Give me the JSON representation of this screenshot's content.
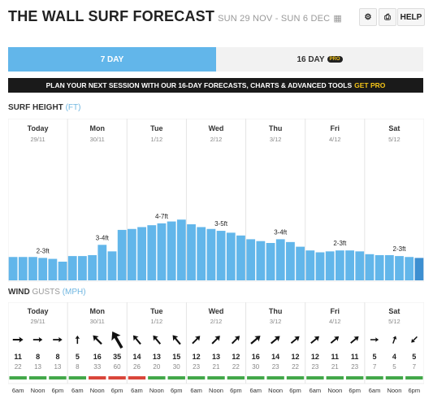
{
  "header": {
    "title": "THE WALL SURF FORECAST",
    "dates": "SUN 29 NOV - SUN 6 DEC",
    "help": "HELP"
  },
  "tabs": [
    {
      "label": "7 DAY",
      "active": true
    },
    {
      "label": "16 DAY",
      "badge": "PRO",
      "active": false
    }
  ],
  "banner": {
    "text": "PLAN YOUR NEXT SESSION WITH OUR 16-DAY FORECASTS, CHARTS & ADVANCED TOOLS",
    "link": "GET PRO"
  },
  "surf": {
    "title": "SURF HEIGHT",
    "unit": "(FT)",
    "color": "#62b6ea",
    "days": [
      {
        "name": "Today",
        "date": "29/11"
      },
      {
        "name": "Mon",
        "date": "30/11"
      },
      {
        "name": "Tue",
        "date": "1/12"
      },
      {
        "name": "Wed",
        "date": "2/12"
      },
      {
        "name": "Thu",
        "date": "3/12"
      },
      {
        "name": "Fri",
        "date": "4/12"
      },
      {
        "name": "Sat",
        "date": "5/12"
      }
    ],
    "values": [
      2.5,
      2.5,
      2.5,
      2.4,
      2.3,
      2.0,
      2.6,
      2.6,
      2.7,
      3.8,
      3.1,
      5.4,
      5.5,
      5.7,
      5.9,
      6.1,
      6.3,
      6.5,
      6.0,
      5.7,
      5.5,
      5.3,
      5.1,
      4.8,
      4.4,
      4.2,
      4.0,
      4.4,
      4.1,
      3.6,
      3.2,
      3.0,
      3.1,
      3.2,
      3.2,
      3.1,
      2.8,
      2.7,
      2.7,
      2.6,
      2.5,
      2.4
    ],
    "value_labels": [
      null,
      null,
      null,
      "2-3ft",
      null,
      null,
      null,
      null,
      null,
      "3-4ft",
      null,
      null,
      null,
      null,
      null,
      "4-7ft",
      null,
      null,
      null,
      null,
      null,
      "3-5ft",
      null,
      null,
      null,
      null,
      null,
      "3-4ft",
      null,
      null,
      null,
      null,
      null,
      "2-3ft",
      null,
      null,
      null,
      null,
      null,
      "2-3ft",
      null,
      null
    ]
  },
  "wind": {
    "title": "WIND",
    "subtitle": "GUSTS",
    "unit": "(MPH)",
    "days": [
      {
        "name": "Today",
        "date": "29/11",
        "slots": [
          {
            "time": "6am",
            "dir": 90,
            "speed": 11,
            "gust": 22,
            "color": "#43a84a"
          },
          {
            "time": "Noon",
            "dir": 90,
            "speed": 8,
            "gust": 13,
            "color": "#43a84a"
          },
          {
            "time": "6pm",
            "dir": 90,
            "speed": 8,
            "gust": 13,
            "color": "#43a84a"
          }
        ]
      },
      {
        "name": "Mon",
        "date": "30/11",
        "slots": [
          {
            "time": "6am",
            "dir": 0,
            "speed": 5,
            "gust": 8,
            "color": "#43a84a"
          },
          {
            "time": "Noon",
            "dir": 315,
            "speed": 16,
            "gust": 33,
            "color": "#d9463a"
          },
          {
            "time": "6pm",
            "dir": 330,
            "speed": 35,
            "gust": 60,
            "color": "#d9463a"
          }
        ]
      },
      {
        "name": "Tue",
        "date": "1/12",
        "slots": [
          {
            "time": "6am",
            "dir": 320,
            "speed": 14,
            "gust": 26,
            "color": "#d9463a"
          },
          {
            "time": "Noon",
            "dir": 320,
            "speed": 13,
            "gust": 20,
            "color": "#43a84a"
          },
          {
            "time": "6pm",
            "dir": 320,
            "speed": 15,
            "gust": 30,
            "color": "#43a84a"
          }
        ]
      },
      {
        "name": "Wed",
        "date": "2/12",
        "slots": [
          {
            "time": "6am",
            "dir": 45,
            "speed": 12,
            "gust": 23,
            "color": "#43a84a"
          },
          {
            "time": "Noon",
            "dir": 45,
            "speed": 13,
            "gust": 21,
            "color": "#43a84a"
          },
          {
            "time": "6pm",
            "dir": 45,
            "speed": 12,
            "gust": 22,
            "color": "#43a84a"
          }
        ]
      },
      {
        "name": "Thu",
        "date": "3/12",
        "slots": [
          {
            "time": "6am",
            "dir": 50,
            "speed": 16,
            "gust": 30,
            "color": "#43a84a"
          },
          {
            "time": "Noon",
            "dir": 50,
            "speed": 14,
            "gust": 23,
            "color": "#43a84a"
          },
          {
            "time": "6pm",
            "dir": 50,
            "speed": 12,
            "gust": 22,
            "color": "#43a84a"
          }
        ]
      },
      {
        "name": "Fri",
        "date": "4/12",
        "slots": [
          {
            "time": "6am",
            "dir": 50,
            "speed": 12,
            "gust": 23,
            "color": "#43a84a"
          },
          {
            "time": "Noon",
            "dir": 50,
            "speed": 11,
            "gust": 21,
            "color": "#43a84a"
          },
          {
            "time": "6pm",
            "dir": 50,
            "speed": 11,
            "gust": 23,
            "color": "#43a84a"
          }
        ]
      },
      {
        "name": "Sat",
        "date": "5/12",
        "slots": [
          {
            "time": "6am",
            "dir": 90,
            "speed": 5,
            "gust": 7,
            "color": "#43a84a"
          },
          {
            "time": "Noon",
            "dir": 20,
            "speed": 4,
            "gust": 5,
            "color": "#43a84a"
          },
          {
            "time": "6pm",
            "dir": 225,
            "speed": 5,
            "gust": 7,
            "color": "#43a84a"
          }
        ]
      }
    ]
  }
}
